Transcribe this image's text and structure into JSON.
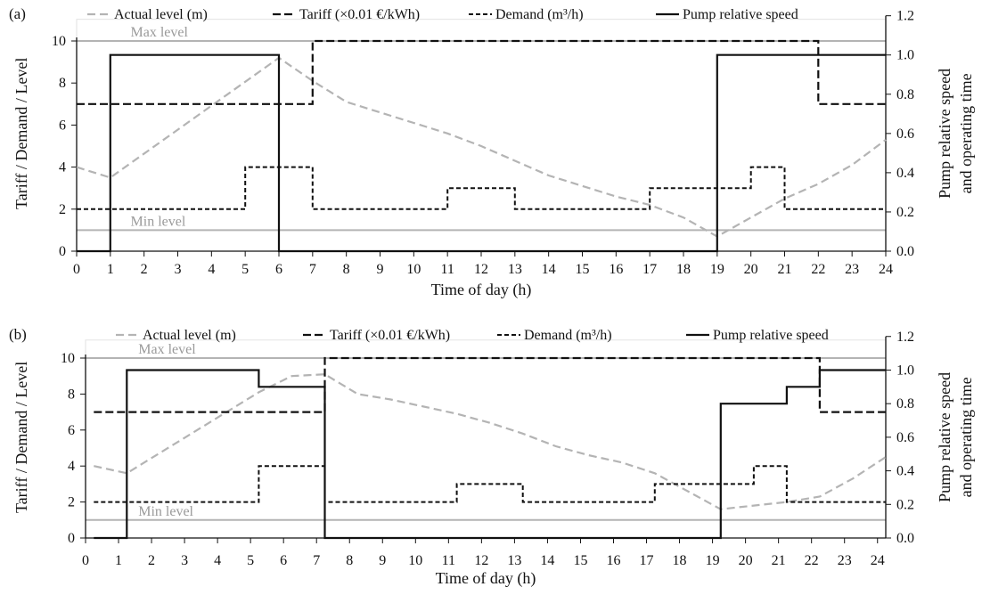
{
  "chart_data": [
    {
      "panel": "(a)",
      "type": "line",
      "xlabel": "Time of day (h)",
      "ylabel_left": "Tariff / Demand / Level",
      "ylabel_right": [
        "Pump relative speed",
        "and operating time"
      ],
      "xlim": [
        0,
        24
      ],
      "ylim_left": [
        0,
        10
      ],
      "ylim_right": [
        0,
        1.2
      ],
      "x_ticks": [
        0,
        1,
        2,
        3,
        4,
        5,
        6,
        7,
        8,
        9,
        10,
        11,
        12,
        13,
        14,
        15,
        16,
        17,
        18,
        19,
        20,
        21,
        22,
        23,
        24
      ],
      "y_left_ticks": [
        0,
        2,
        4,
        6,
        8,
        10
      ],
      "y_right_ticks": [
        "0.0",
        "0.2",
        "0.4",
        "0.6",
        "0.8",
        "1.0",
        "1.2"
      ],
      "reference_lines": [
        {
          "label": "Max level",
          "y": 10
        },
        {
          "label": "Min level",
          "y": 1
        }
      ],
      "series": [
        {
          "name": "Actual level (m)",
          "axis": "left",
          "style": "gray-dashed",
          "x": [
            0,
            1,
            6,
            7,
            8,
            9,
            10,
            11,
            12,
            13,
            14,
            15,
            16,
            17,
            18,
            19,
            20,
            21,
            22,
            23,
            24
          ],
          "y": [
            4.0,
            3.5,
            9.2,
            8.1,
            7.1,
            6.6,
            6.1,
            5.6,
            5.0,
            4.3,
            3.6,
            3.1,
            2.6,
            2.2,
            1.6,
            0.7,
            1.6,
            2.5,
            3.2,
            4.1,
            5.3
          ]
        },
        {
          "name": "Tariff (×0.01 €/kWh)",
          "axis": "left",
          "style": "black-long-dash",
          "step": true,
          "x": [
            0,
            7,
            7,
            22,
            22,
            24
          ],
          "y": [
            7,
            7,
            10,
            10,
            7,
            7
          ]
        },
        {
          "name": "Demand (m³/h)",
          "axis": "left",
          "style": "black-short-dash",
          "step": true,
          "x": [
            0,
            5,
            5,
            7,
            7,
            11,
            11,
            13,
            13,
            17,
            17,
            20,
            20,
            21,
            21,
            24
          ],
          "y": [
            2,
            2,
            4,
            4,
            2,
            2,
            3,
            3,
            2,
            2,
            3,
            3,
            4,
            4,
            2,
            2
          ]
        },
        {
          "name": "Pump relative speed",
          "axis": "right",
          "style": "black-solid",
          "step": true,
          "x": [
            0,
            1,
            1,
            6,
            6,
            19,
            19,
            24
          ],
          "y": [
            0,
            0,
            1.0,
            1.0,
            0,
            0,
            1.0,
            1.0
          ]
        }
      ]
    },
    {
      "panel": "(b)",
      "type": "line",
      "xlabel": "Time of day (h)",
      "ylabel_left": "Tariff / Demand / Level",
      "ylabel_right": [
        "Pump relative speed",
        "and operating time"
      ],
      "xlim": [
        0,
        24.25
      ],
      "ylim_left": [
        0,
        10
      ],
      "ylim_right": [
        0,
        1.2
      ],
      "x_ticks": [
        0,
        1,
        2,
        3,
        4,
        5,
        6,
        7,
        8,
        9,
        10,
        11,
        12,
        13,
        14,
        15,
        16,
        17,
        18,
        19,
        20,
        21,
        22,
        23,
        24
      ],
      "y_left_ticks": [
        0,
        2,
        4,
        6,
        8,
        10
      ],
      "y_right_ticks": [
        "0.0",
        "0.2",
        "0.4",
        "0.6",
        "0.8",
        "1.0",
        "1.2"
      ],
      "reference_lines": [
        {
          "label": "Max level",
          "y": 10
        },
        {
          "label": "Min level",
          "y": 1
        }
      ],
      "series": [
        {
          "name": "Actual level (m)",
          "axis": "left",
          "style": "gray-dashed",
          "x": [
            0.25,
            1.25,
            5.25,
            6.25,
            7.25,
            8.25,
            9.25,
            10.25,
            11.25,
            12.25,
            13.25,
            14.25,
            15.25,
            16.25,
            17.25,
            18.25,
            19.25,
            20.25,
            21.25,
            22.25,
            23.25,
            24.25
          ],
          "y": [
            4.0,
            3.6,
            8.1,
            9.0,
            9.1,
            8.0,
            7.7,
            7.3,
            6.9,
            6.4,
            5.8,
            5.1,
            4.6,
            4.2,
            3.6,
            2.6,
            1.6,
            1.8,
            2.0,
            2.3,
            3.3,
            4.5
          ]
        },
        {
          "name": "Tariff (×0.01 €/kWh)",
          "axis": "left",
          "style": "black-long-dash",
          "step": true,
          "x": [
            0.25,
            7.25,
            7.25,
            22.25,
            22.25,
            24.25
          ],
          "y": [
            7,
            7,
            10,
            10,
            7,
            7
          ]
        },
        {
          "name": "Demand (m³/h)",
          "axis": "left",
          "style": "black-short-dash",
          "step": true,
          "x": [
            0.25,
            5.25,
            5.25,
            7.25,
            7.25,
            11.25,
            11.25,
            13.25,
            13.25,
            17.25,
            17.25,
            20.25,
            20.25,
            21.25,
            21.25,
            24.25
          ],
          "y": [
            2,
            2,
            4,
            4,
            2,
            2,
            3,
            3,
            2,
            2,
            3,
            3,
            4,
            4,
            2,
            2
          ]
        },
        {
          "name": "Pump relative speed",
          "axis": "right",
          "style": "black-solid",
          "step": true,
          "x": [
            0.25,
            1.25,
            1.25,
            5.25,
            5.25,
            7.25,
            7.25,
            19.25,
            19.25,
            21.25,
            21.25,
            22.25,
            22.25,
            24.25
          ],
          "y": [
            0,
            0,
            1.0,
            1.0,
            0.9,
            0.9,
            0,
            0,
            0.8,
            0.8,
            0.9,
            0.9,
            1.0,
            1.0
          ]
        }
      ]
    }
  ]
}
